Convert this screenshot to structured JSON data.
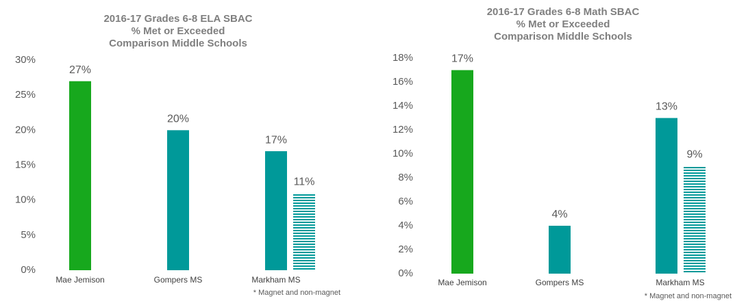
{
  "chart_data": [
    {
      "type": "bar",
      "title": [
        "2016-17 Grades 6-8 ELA SBAC",
        "% Met or Exceeded",
        "Comparison Middle Schools"
      ],
      "categories": [
        "Mae Jemison",
        "Gompers MS",
        "Markham MS"
      ],
      "series": [
        {
          "colors": [
            "#17a81d",
            "#009999",
            "#009999"
          ],
          "values": [
            27,
            20,
            17
          ],
          "value_labels": [
            "27%",
            "20%",
            "17%"
          ]
        },
        {
          "color": "#009999",
          "pattern": "hatch",
          "values": [
            null,
            null,
            11
          ],
          "value_labels": [
            null,
            null,
            "11%"
          ]
        }
      ],
      "annotation": "* Magnet and non-magnet",
      "ylim": [
        0,
        30
      ],
      "yticks": [
        {
          "value": 0,
          "label": "0%"
        },
        {
          "value": 5,
          "label": "5%"
        },
        {
          "value": 10,
          "label": "10%"
        },
        {
          "value": 15,
          "label": "15%"
        },
        {
          "value": 20,
          "label": "20%"
        },
        {
          "value": 25,
          "label": "25%"
        },
        {
          "value": 30,
          "label": "30%"
        }
      ],
      "grid": false
    },
    {
      "type": "bar",
      "title": [
        "2016-17 Grades 6-8 Math SBAC",
        "% Met or Exceeded",
        "Comparison Middle Schools"
      ],
      "categories": [
        "Mae Jemison",
        "Gompers MS",
        "Markham MS"
      ],
      "series": [
        {
          "colors": [
            "#17a81d",
            "#009999",
            "#009999"
          ],
          "values": [
            17,
            4,
            13
          ],
          "value_labels": [
            "17%",
            "4%",
            "13%"
          ]
        },
        {
          "color": "#009999",
          "pattern": "hatch",
          "values": [
            null,
            null,
            9
          ],
          "value_labels": [
            null,
            null,
            "9%"
          ]
        }
      ],
      "annotation": "* Magnet and non-magnet",
      "ylim": [
        0,
        18
      ],
      "yticks": [
        {
          "value": 0,
          "label": "0%"
        },
        {
          "value": 2,
          "label": "2%"
        },
        {
          "value": 4,
          "label": "4%"
        },
        {
          "value": 6,
          "label": "6%"
        },
        {
          "value": 8,
          "label": "8%"
        },
        {
          "value": 10,
          "label": "10%"
        },
        {
          "value": 12,
          "label": "12%"
        },
        {
          "value": 14,
          "label": "14%"
        },
        {
          "value": 16,
          "label": "16%"
        },
        {
          "value": 18,
          "label": "18%"
        }
      ],
      "grid": false
    }
  ]
}
